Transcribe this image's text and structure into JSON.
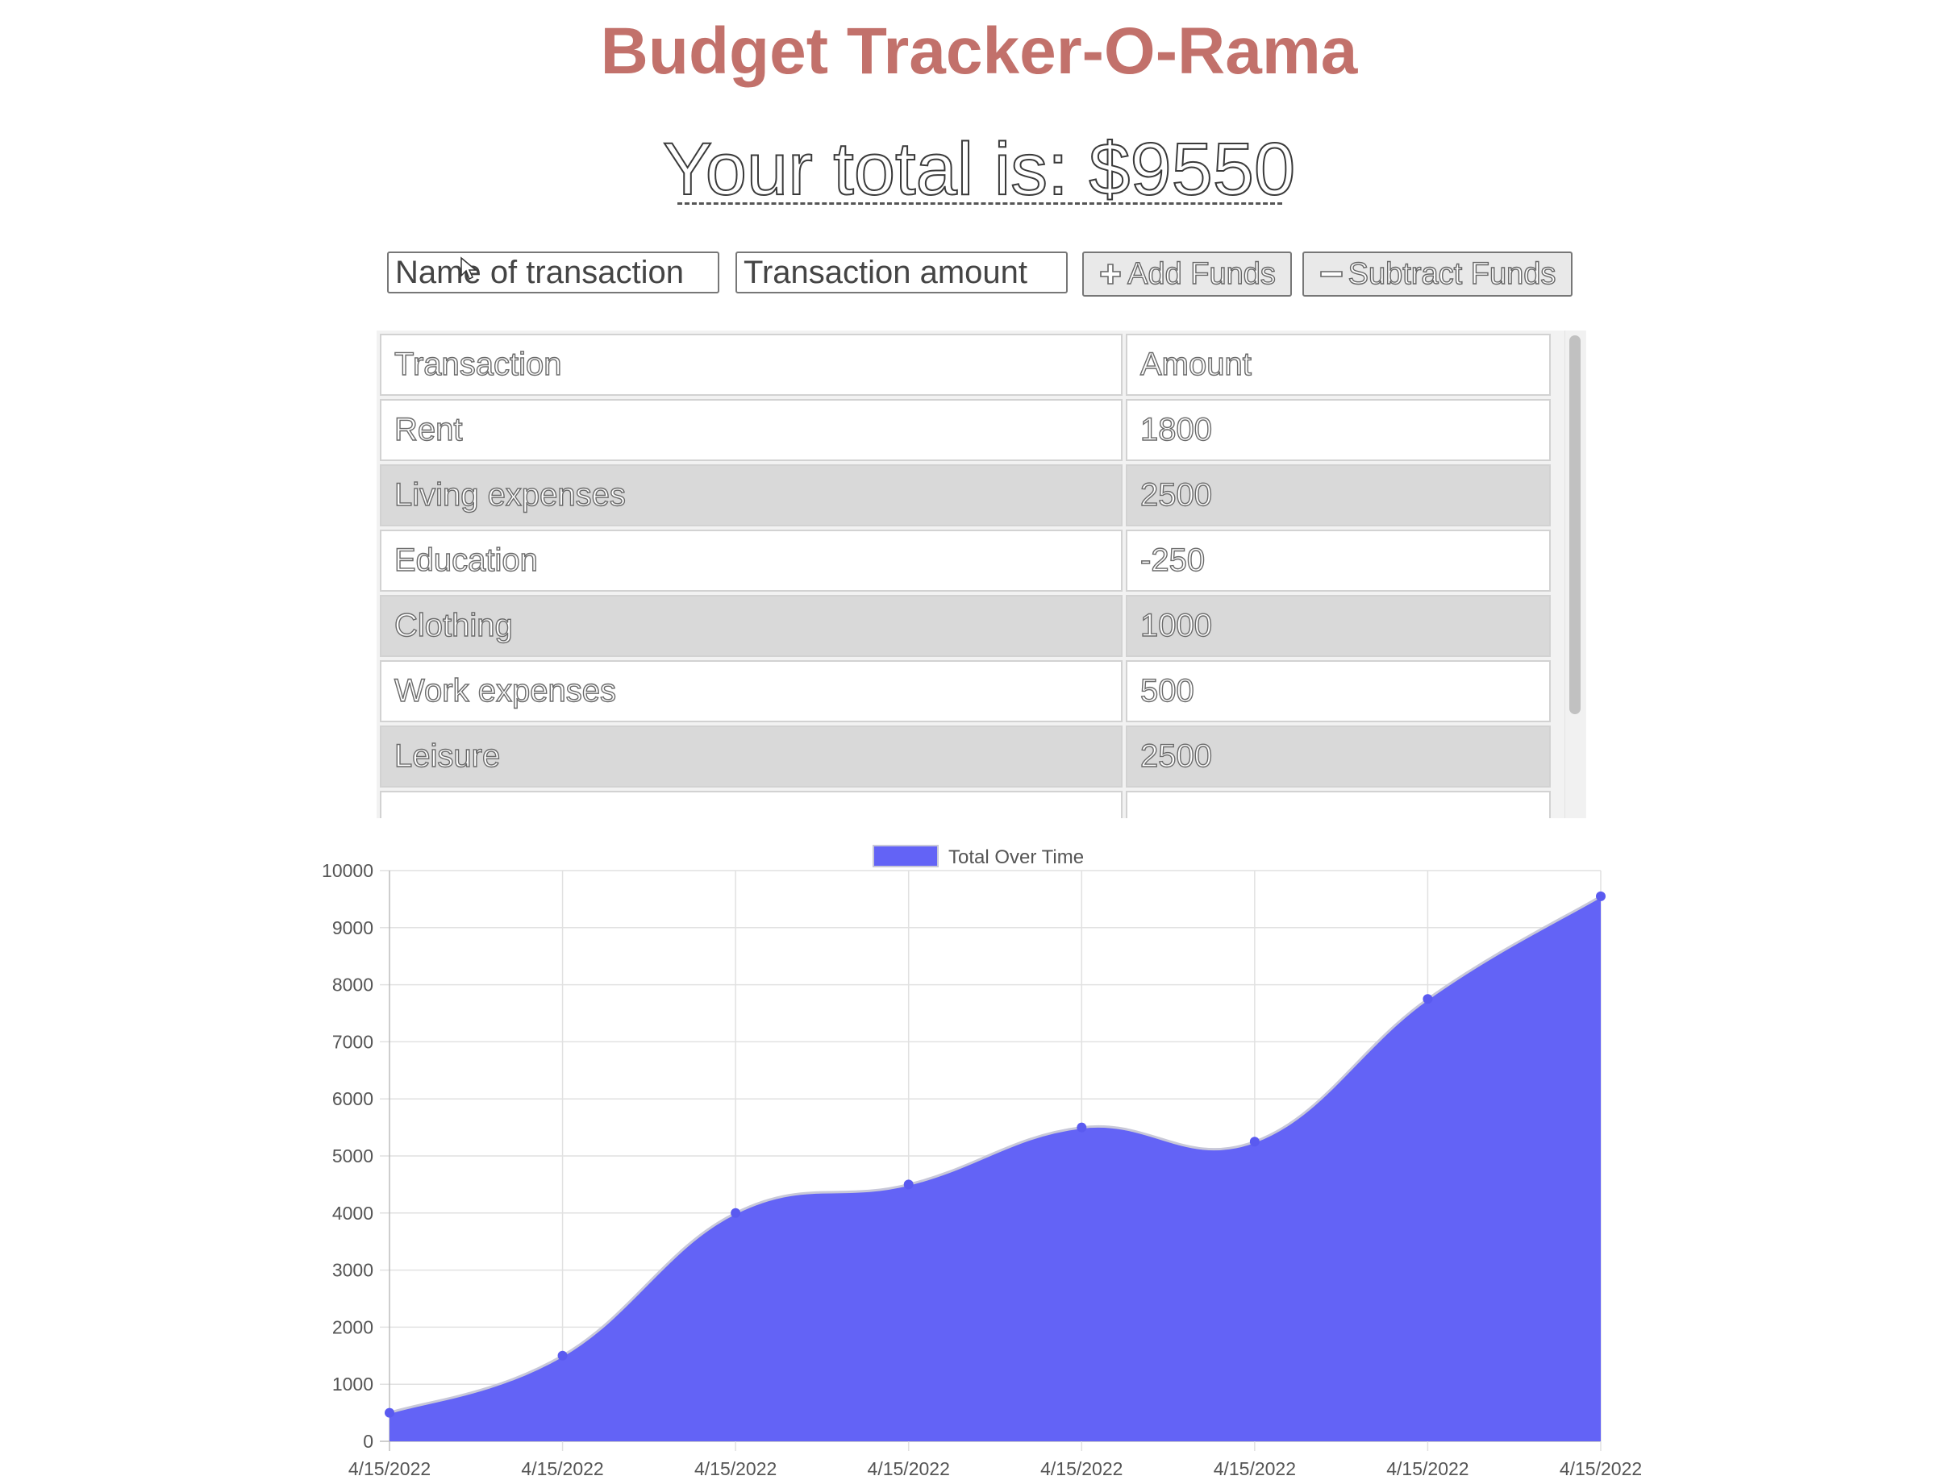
{
  "app": {
    "title": "Budget Tracker-O-Rama",
    "total_text": "Your total is: $9550"
  },
  "form": {
    "name_placeholder": "Name of transaction",
    "amount_placeholder": "Transaction amount",
    "add_label": "Add Funds",
    "subtract_label": "Subtract Funds",
    "add_icon": "plus-icon",
    "subtract_icon": "minus-icon"
  },
  "table": {
    "headers": [
      "Transaction",
      "Amount"
    ],
    "rows": [
      {
        "name": "Rent",
        "amount": "1800"
      },
      {
        "name": "Living expenses",
        "amount": "2500"
      },
      {
        "name": "Education",
        "amount": "-250"
      },
      {
        "name": "Clothing",
        "amount": "1000"
      },
      {
        "name": "Work expenses",
        "amount": "500"
      },
      {
        "name": "Leisure",
        "amount": "2500"
      }
    ]
  },
  "chart_data": {
    "type": "area",
    "x": [
      "4/15/2022",
      "4/15/2022",
      "4/15/2022",
      "4/15/2022",
      "4/15/2022",
      "4/15/2022",
      "4/15/2022",
      "4/15/2022"
    ],
    "series": [
      {
        "name": "Total Over Time",
        "values": [
          500,
          1500,
          4000,
          4500,
          5500,
          5250,
          7750,
          9550
        ]
      }
    ],
    "ylim": [
      0,
      10000
    ],
    "yticks": [
      0,
      1000,
      2000,
      3000,
      4000,
      5000,
      6000,
      7000,
      8000,
      9000,
      10000
    ],
    "grid": true,
    "legend": "top-center",
    "colors": {
      "fill": "#6363f6",
      "point": "#5a5af0",
      "line": "#c8c8d8"
    }
  },
  "colors": {
    "title": "#c2716b",
    "row_alt": "#d9d9d9"
  }
}
